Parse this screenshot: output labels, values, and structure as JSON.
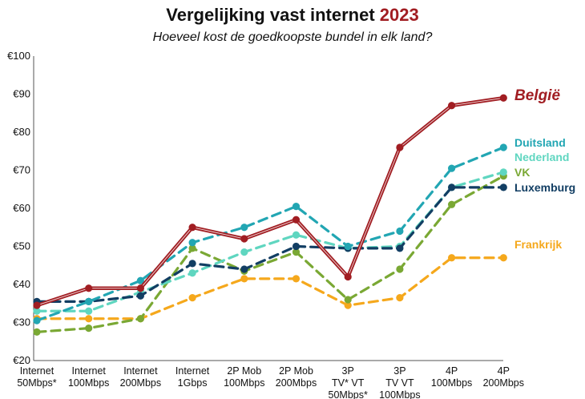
{
  "chart_data": {
    "type": "line",
    "title": "Vergelijking vast internet ",
    "title_year": "2023",
    "subtitle": "Hoeveel kost de goedkoopste bundel in elk land?",
    "ylim": [
      20,
      100
    ],
    "yticks": [
      20,
      30,
      40,
      50,
      60,
      70,
      80,
      90,
      100
    ],
    "ytick_labels": [
      "€20",
      "€30",
      "€40",
      "€50",
      "€60",
      "€70",
      "€80",
      "€90",
      "€100"
    ],
    "grid": false,
    "categories": [
      [
        "Internet",
        "50Mbps*"
      ],
      [
        "Internet",
        "100Mbps"
      ],
      [
        "Internet",
        "200Mbps"
      ],
      [
        "Internet",
        "1Gbps"
      ],
      [
        "2P Mob",
        "100Mbps"
      ],
      [
        "2P Mob",
        "200Mbps"
      ],
      [
        "3P",
        "TV*  VT",
        "50Mbps*"
      ],
      [
        "3P",
        "TV  VT",
        "100Mbps"
      ],
      [
        "4P",
        "100Mbps"
      ],
      [
        "4P",
        "200Mbps"
      ]
    ],
    "series": [
      {
        "name": "Frankrijk",
        "color": "#f5a81c",
        "style": "dashed",
        "values": [
          31,
          31,
          31,
          36.5,
          41.5,
          41.5,
          34.5,
          36.5,
          47,
          47
        ]
      },
      {
        "name": "VK",
        "color": "#7aa834",
        "style": "dashed",
        "values": [
          27.5,
          28.5,
          31,
          49.5,
          43.5,
          48.5,
          36,
          44,
          61,
          68.5
        ]
      },
      {
        "name": "Nederland",
        "color": "#5fd6c0",
        "style": "dashed",
        "values": [
          33,
          33,
          38,
          43,
          48.5,
          53,
          49.5,
          50,
          65.5,
          69.5
        ]
      },
      {
        "name": "Luxemburg",
        "color": "#123e63",
        "style": "dashed",
        "values": [
          35.5,
          35.5,
          37,
          45.5,
          44,
          50,
          49.5,
          49.5,
          65.5,
          65.5
        ]
      },
      {
        "name": "Duitsland",
        "color": "#22a6b3",
        "style": "dashed",
        "values": [
          30.5,
          35.5,
          41,
          51,
          55,
          60.5,
          50,
          54,
          70.5,
          76
        ]
      },
      {
        "name": "België",
        "color": "#a11d22",
        "style": "solid",
        "values": [
          34.5,
          39,
          39,
          55,
          52,
          57,
          42,
          76,
          87,
          89
        ]
      }
    ]
  }
}
